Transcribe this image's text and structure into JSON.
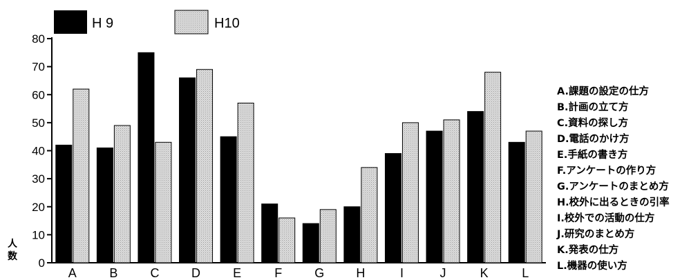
{
  "chart_data": {
    "type": "bar",
    "categories": [
      "A",
      "B",
      "C",
      "D",
      "E",
      "F",
      "G",
      "H",
      "I",
      "J",
      "K",
      "L"
    ],
    "series": [
      {
        "name": "H 9",
        "values": [
          42,
          41,
          75,
          66,
          45,
          21,
          14,
          20,
          39,
          47,
          54,
          43
        ],
        "color": "#000000"
      },
      {
        "name": "H10",
        "values": [
          62,
          49,
          43,
          69,
          57,
          16,
          19,
          34,
          50,
          51,
          68,
          47
        ],
        "color": "#d4d4d4"
      }
    ],
    "ylabel": "人数",
    "ylim": [
      0,
      80
    ],
    "yticks": [
      0,
      10,
      20,
      30,
      40,
      50,
      60,
      70,
      80
    ],
    "legend_position": "top-left",
    "grid": false,
    "category_notes": [
      "A.課題の設定の仕方",
      "B.計画の立て方",
      "C.資料の探し方",
      "D.電話のかけ方",
      "E.手紙の書き方",
      "F.アンケートの作り方",
      "G.アンケートのまとめ方",
      "H.校外に出るときの引率",
      "I.校外での活動の仕方",
      "J.研究のまとめ方",
      "K.発表の仕方",
      "L.機器の使い方"
    ]
  }
}
